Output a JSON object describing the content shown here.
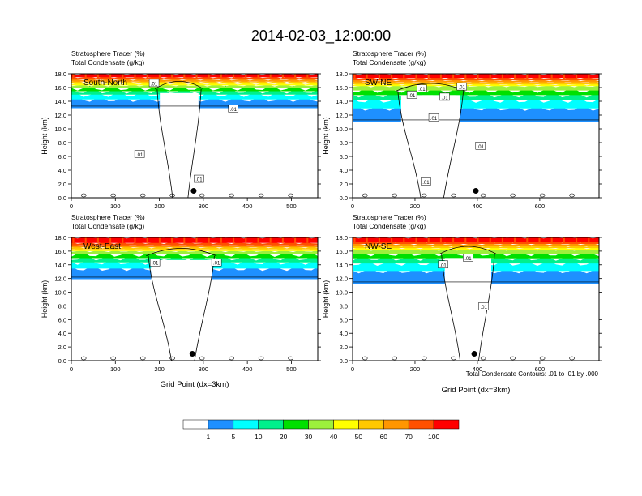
{
  "title": "2014-02-03_12:00:00",
  "panel_label_1": "Stratosphere Tracer   (%)",
  "panel_label_2": "Total Condensate   (g/kg)",
  "ylabel": "Height (km)",
  "xlabel": "Grid Point (dx=3km)",
  "contour_note": "Total Condensate Contours: .01 to .01 by .000",
  "contour_label": ".01",
  "colorbar": {
    "colors": [
      "#ffffff",
      "#1e90ff",
      "#00ffff",
      "#00f08c",
      "#00e000",
      "#9cf03c",
      "#ffff00",
      "#ffc800",
      "#ff9600",
      "#ff5000",
      "#ff0000"
    ],
    "labels": [
      "1",
      "5",
      "10",
      "20",
      "30",
      "40",
      "50",
      "60",
      "70",
      "100"
    ]
  },
  "chart_data": [
    {
      "type": "heatmap",
      "name": "South-North",
      "xlim": [
        0,
        560
      ],
      "ylim": [
        0,
        18
      ],
      "xticks": [
        "0",
        "100",
        "200",
        "300",
        "400",
        "500"
      ],
      "xtick_values": [
        0,
        100,
        200,
        300,
        400,
        500
      ],
      "yticks": [
        "0.0",
        "2.0",
        "4.0",
        "6.0",
        "8.0",
        "10.0",
        "12.0",
        "14.0",
        "16.0",
        "18.0"
      ],
      "tropopause_km": 15.8,
      "green_top_km": 16.3,
      "blue_bottom_km": 13.0,
      "updraft_x": [
        190,
        300
      ],
      "marker": {
        "x": 278,
        "y": 1.0
      },
      "contour_labels": [
        {
          "x": 188,
          "y": 16.6
        },
        {
          "x": 155,
          "y": 6.3
        },
        {
          "x": 290,
          "y": 2.7
        },
        {
          "x": 368,
          "y": 12.9
        }
      ]
    },
    {
      "type": "heatmap",
      "name": "SW-NE",
      "xlim": [
        0,
        790
      ],
      "ylim": [
        0,
        18
      ],
      "xticks": [
        "0",
        "200",
        "400",
        "600"
      ],
      "xtick_values": [
        0,
        200,
        400,
        600
      ],
      "yticks": [
        "0.0",
        "2.0",
        "4.0",
        "6.0",
        "8.0",
        "10.0",
        "12.0",
        "14.0",
        "16.0",
        "18.0"
      ],
      "tropopause_km": 15.5,
      "green_top_km": 16.2,
      "blue_bottom_km": 11.0,
      "updraft_x": [
        140,
        360
      ],
      "marker": {
        "x": 395,
        "y": 1.0
      },
      "contour_labels": [
        {
          "x": 222,
          "y": 15.8
        },
        {
          "x": 190,
          "y": 14.9
        },
        {
          "x": 260,
          "y": 11.6
        },
        {
          "x": 295,
          "y": 14.6
        },
        {
          "x": 350,
          "y": 16.1
        },
        {
          "x": 410,
          "y": 7.5
        },
        {
          "x": 235,
          "y": 2.3
        }
      ]
    },
    {
      "type": "heatmap",
      "name": "West-East",
      "xlim": [
        0,
        560
      ],
      "ylim": [
        0,
        18
      ],
      "xticks": [
        "0",
        "100",
        "200",
        "300",
        "400",
        "500"
      ],
      "xtick_values": [
        0,
        100,
        200,
        300,
        400,
        500
      ],
      "yticks": [
        "0.0",
        "2.0",
        "4.0",
        "6.0",
        "8.0",
        "10.0",
        "12.0",
        "14.0",
        "16.0",
        "18.0"
      ],
      "tropopause_km": 15.3,
      "green_top_km": 16.0,
      "blue_bottom_km": 11.9,
      "updraft_x": [
        170,
        330
      ],
      "marker": {
        "x": 275,
        "y": 1.0
      },
      "contour_labels": [
        {
          "x": 190,
          "y": 14.3
        },
        {
          "x": 330,
          "y": 14.3
        }
      ]
    },
    {
      "type": "heatmap",
      "name": "NW-SE",
      "xlim": [
        0,
        790
      ],
      "ylim": [
        0,
        18
      ],
      "xticks": [
        "0",
        "200",
        "400",
        "600"
      ],
      "xtick_values": [
        0,
        200,
        400,
        600
      ],
      "yticks": [
        "0.0",
        "2.0",
        "4.0",
        "6.0",
        "8.0",
        "10.0",
        "12.0",
        "14.0",
        "16.0",
        "18.0"
      ],
      "tropopause_km": 15.6,
      "green_top_km": 16.2,
      "blue_bottom_km": 11.2,
      "updraft_x": [
        280,
        460
      ],
      "marker": {
        "x": 390,
        "y": 1.0
      },
      "contour_labels": [
        {
          "x": 290,
          "y": 14.0
        },
        {
          "x": 370,
          "y": 15.0
        },
        {
          "x": 420,
          "y": 7.9
        }
      ]
    }
  ]
}
